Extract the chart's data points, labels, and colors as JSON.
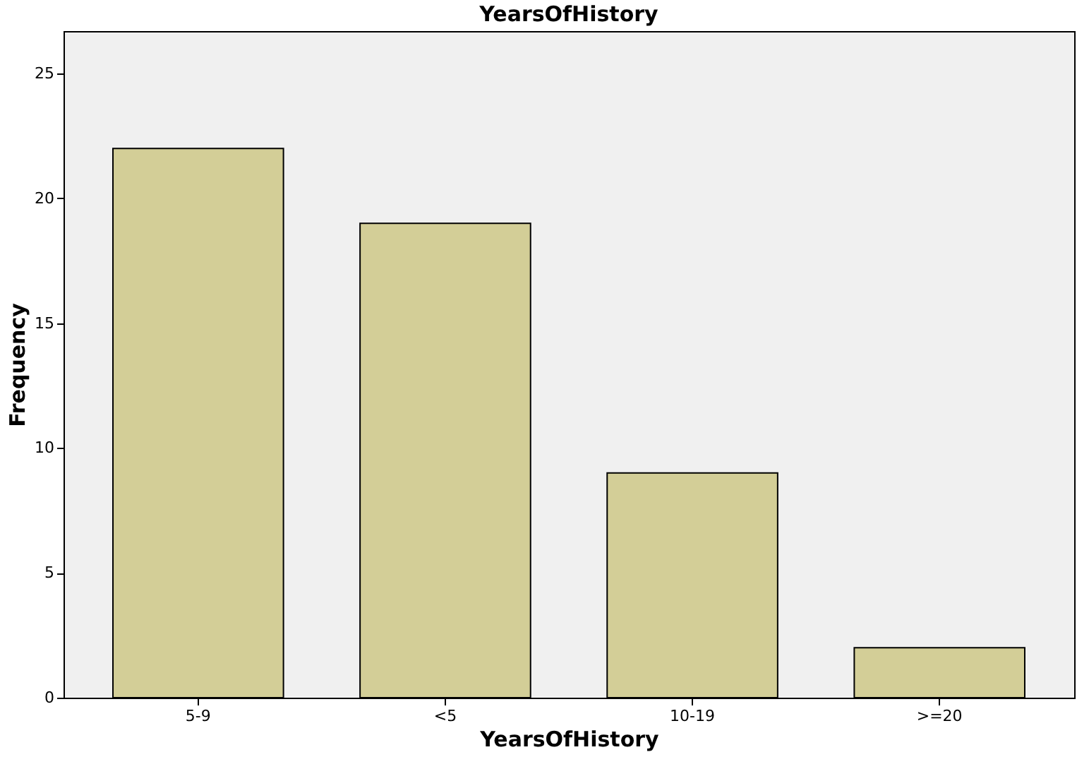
{
  "chart_data": {
    "type": "bar",
    "title": "YearsOfHistory",
    "xlabel": "YearsOfHistory",
    "ylabel": "Frequency",
    "categories": [
      "5-9",
      "<5",
      "10-19",
      ">=20"
    ],
    "values": [
      22,
      19,
      9,
      2
    ],
    "color": "#d3ce97",
    "ylim": [
      0,
      26.7
    ],
    "yticks": [
      0,
      5,
      10,
      15,
      20,
      25
    ],
    "grid": false
  }
}
